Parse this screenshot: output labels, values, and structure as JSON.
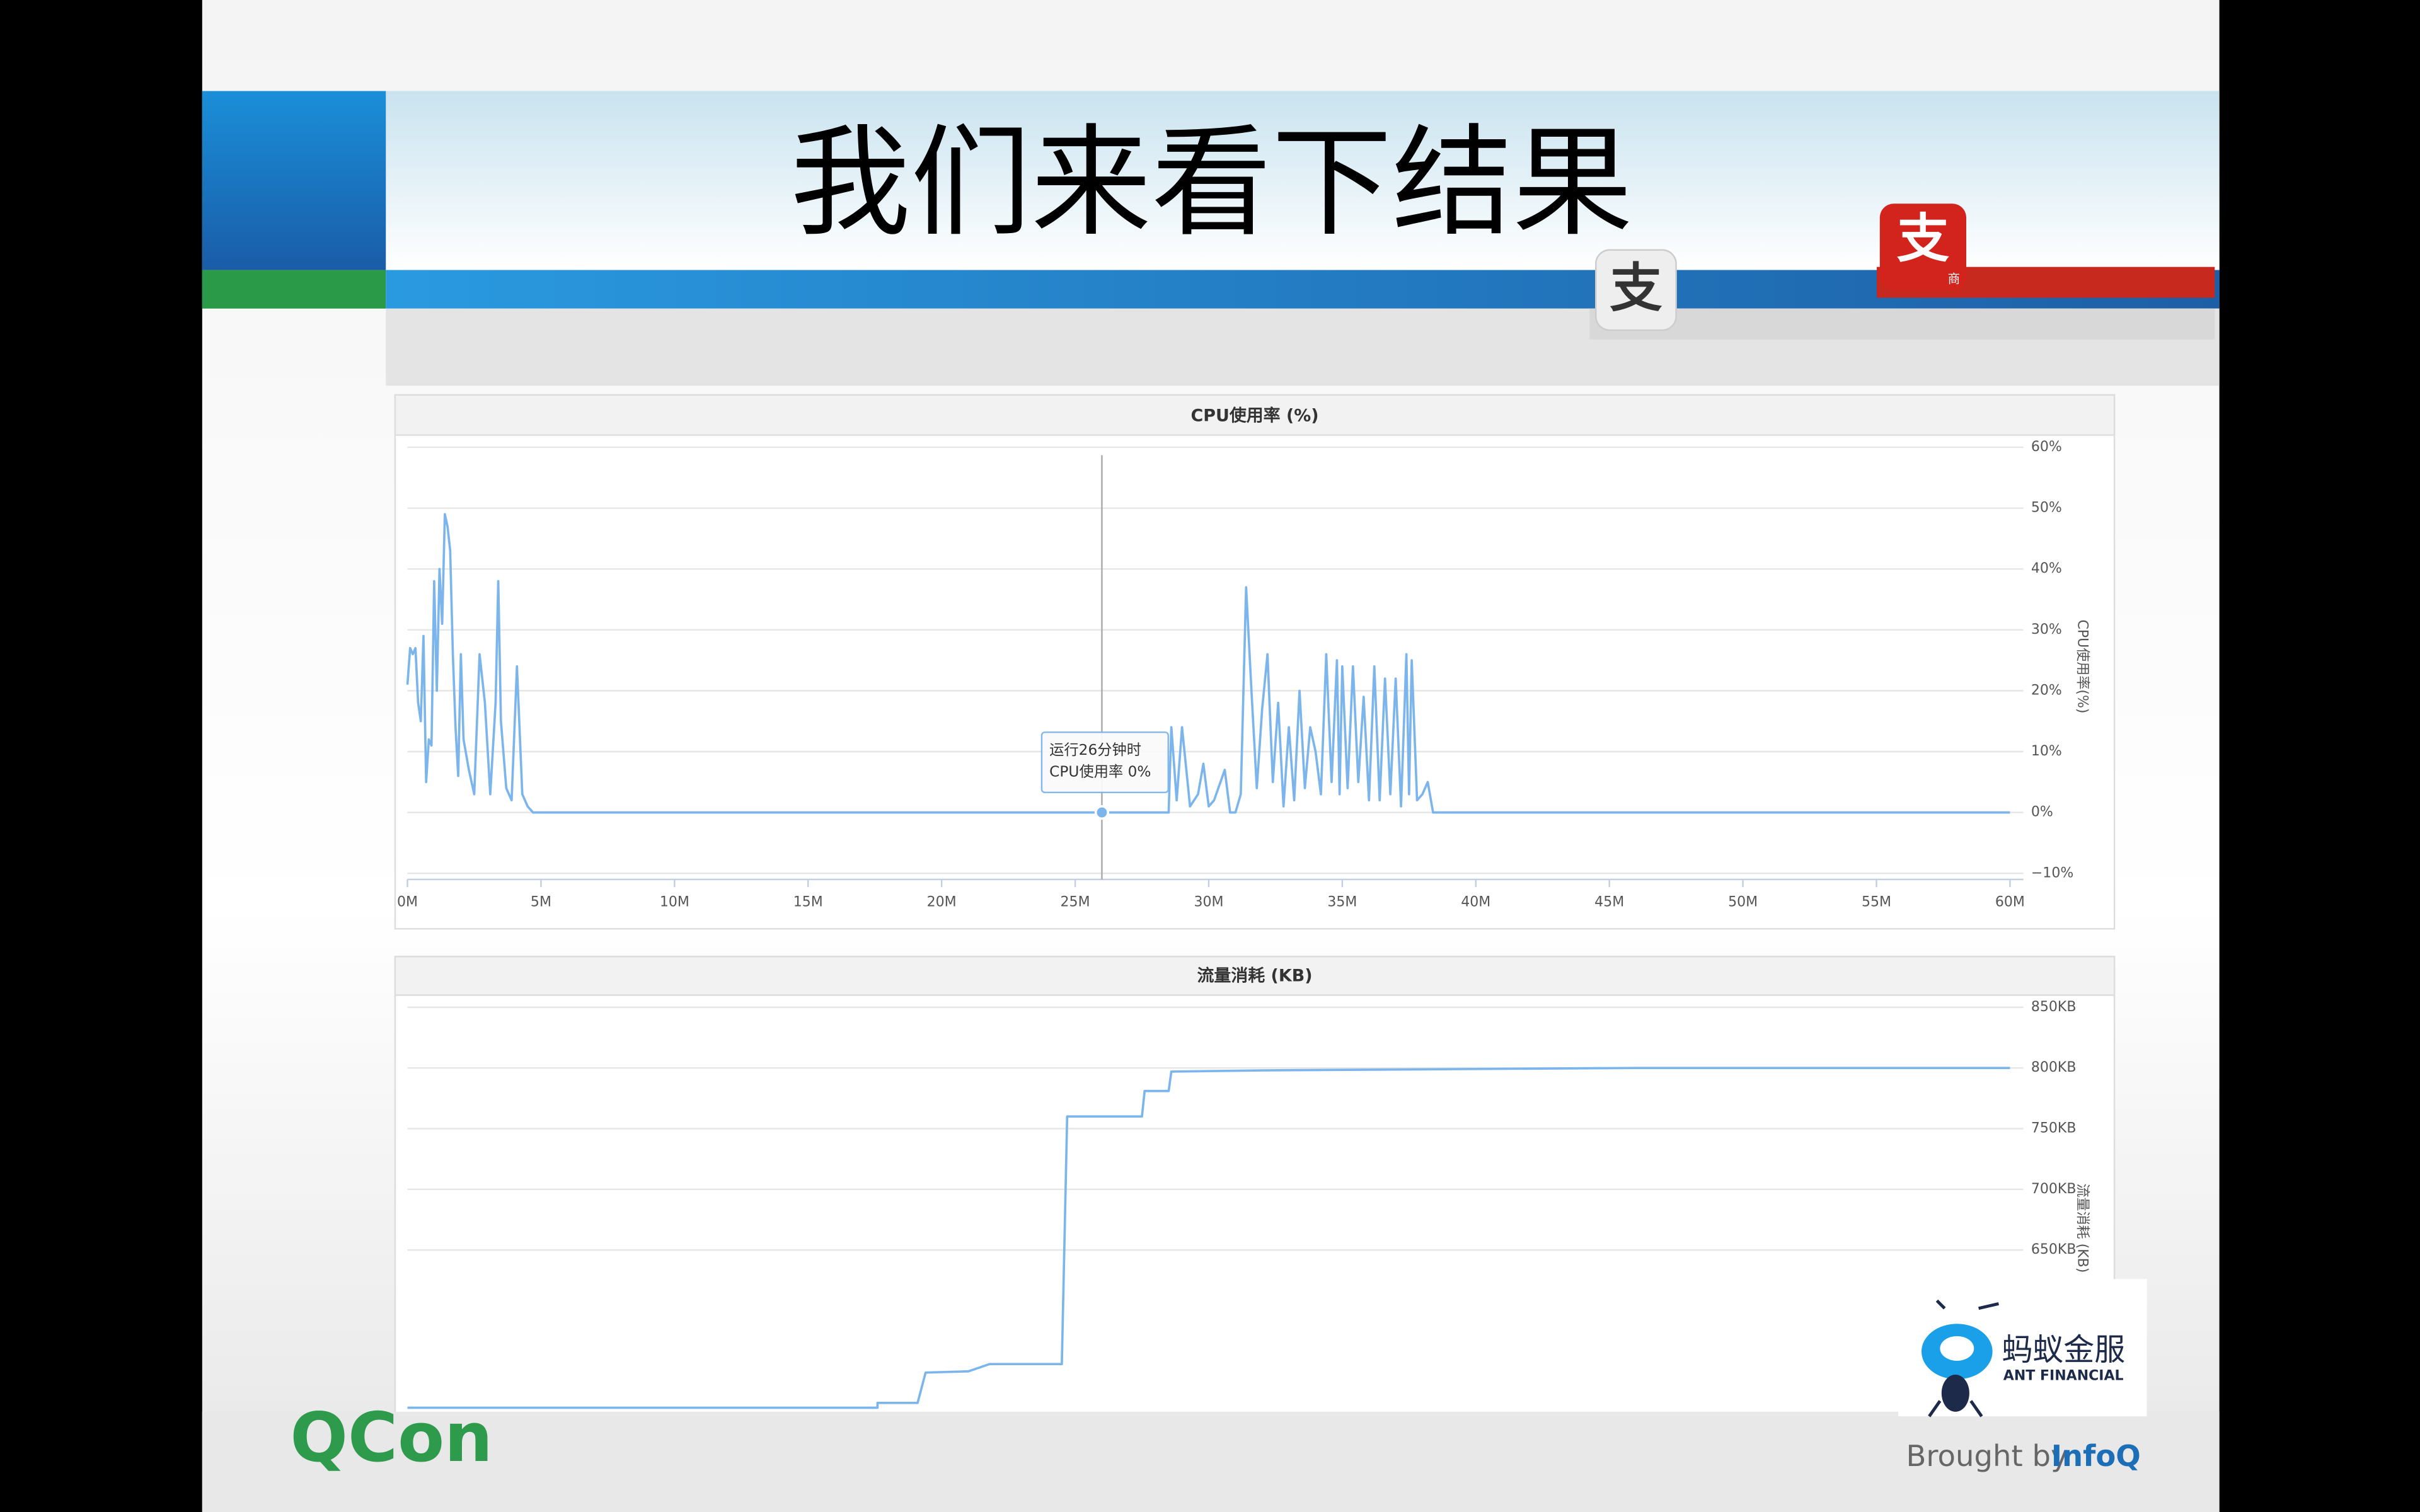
{
  "slide_title": "我们来看下结果",
  "logos": {
    "alipay": "支",
    "alipay_merchant": "支",
    "merchant_badge": "商",
    "ant_cn": "蚂蚁金服",
    "ant_en": "ANT FINANCIAL",
    "qcon": "QCon",
    "brought_by": "Brought by",
    "infoq": "InfoQ"
  },
  "chart_data": [
    {
      "type": "line",
      "title": "CPU使用率 (%)",
      "y_label": "CPU使用率(%)",
      "xlim": [
        0,
        60.5
      ],
      "xticks": [
        {
          "value": 0,
          "label": "0M"
        },
        {
          "value": 5,
          "label": "5M"
        },
        {
          "value": 10,
          "label": "10M"
        },
        {
          "value": 15,
          "label": "15M"
        },
        {
          "value": 20,
          "label": "20M"
        },
        {
          "value": 25,
          "label": "25M"
        },
        {
          "value": 30,
          "label": "30M"
        },
        {
          "value": 35,
          "label": "35M"
        },
        {
          "value": 40,
          "label": "40M"
        },
        {
          "value": 45,
          "label": "45M"
        },
        {
          "value": 50,
          "label": "50M"
        },
        {
          "value": 55,
          "label": "55M"
        },
        {
          "value": 60,
          "label": "60M"
        }
      ],
      "ylim": [
        -11,
        62
      ],
      "yticks": [
        {
          "value": -10,
          "label": "−10%"
        },
        {
          "value": 0,
          "label": "0%"
        },
        {
          "value": 10,
          "label": "10%"
        },
        {
          "value": 20,
          "label": "20%"
        },
        {
          "value": 30,
          "label": "30%"
        },
        {
          "value": 40,
          "label": "40%"
        },
        {
          "value": 50,
          "label": "50%"
        },
        {
          "value": 60,
          "label": "60%"
        }
      ],
      "grid": true,
      "x": [
        0,
        0.1,
        0.2,
        0.3,
        0.4,
        0.5,
        0.6,
        0.7,
        0.8,
        0.9,
        1.0,
        1.1,
        1.2,
        1.3,
        1.4,
        1.5,
        1.6,
        1.7,
        1.8,
        1.9,
        2.0,
        2.1,
        2.3,
        2.5,
        2.7,
        2.9,
        3.1,
        3.3,
        3.4,
        3.5,
        3.7,
        3.9,
        4.1,
        4.3,
        4.5,
        4.7,
        28.5,
        28.6,
        28.8,
        29.0,
        29.3,
        29.6,
        29.8,
        30.0,
        30.2,
        30.6,
        30.8,
        31.0,
        31.2,
        31.4,
        31.6,
        31.8,
        32.0,
        32.2,
        32.4,
        32.6,
        32.8,
        33.0,
        33.2,
        33.4,
        33.6,
        33.8,
        34.0,
        34.2,
        34.4,
        34.6,
        34.8,
        34.9,
        35.0,
        35.2,
        35.4,
        35.6,
        35.8,
        36.0,
        36.2,
        36.4,
        36.6,
        36.8,
        37.0,
        37.2,
        37.4,
        37.5,
        37.6,
        37.8,
        38.0,
        38.2,
        38.4,
        60
      ],
      "series": [
        {
          "color": "#7cb5ec",
          "values": [
            21,
            27,
            26,
            27,
            18,
            15,
            29,
            5,
            12,
            11,
            38,
            20,
            40,
            31,
            49,
            47,
            43,
            26,
            14,
            6,
            26,
            12,
            7,
            3,
            26,
            18,
            3,
            18,
            38,
            15,
            4,
            2,
            24,
            3,
            1,
            0,
            0,
            14,
            2,
            14,
            1,
            3,
            8,
            1,
            2,
            7,
            0,
            0,
            3,
            37,
            20,
            4,
            17,
            26,
            5,
            18,
            1,
            14,
            2,
            20,
            4,
            14,
            10,
            3,
            26,
            5,
            25,
            3,
            24,
            4,
            24,
            5,
            19,
            2,
            24,
            2,
            22,
            3,
            22,
            1,
            26,
            3,
            25,
            2,
            3,
            5,
            0,
            0
          ]
        }
      ],
      "tooltip": {
        "x": 26,
        "value": 0,
        "lines": [
          "运行26分钟时",
          "CPU使用率 0%"
        ]
      }
    },
    {
      "type": "line",
      "title": "流量消耗 (KB)",
      "y_label": "流量消耗 (KB)",
      "xlim": [
        0,
        60.5
      ],
      "ylim": [
        518,
        860
      ],
      "yticks": [
        {
          "value": 650,
          "label": "650KB"
        },
        {
          "value": 700,
          "label": "700KB"
        },
        {
          "value": 750,
          "label": "750KB"
        },
        {
          "value": 800,
          "label": "800KB"
        },
        {
          "value": 850,
          "label": "850KB"
        }
      ],
      "grid": true,
      "x": [
        0,
        17.6,
        17.6,
        19.1,
        19.4,
        21,
        21.8,
        24.5,
        24.7,
        27.5,
        27.6,
        28.5,
        28.6,
        32,
        46,
        60
      ],
      "series": [
        {
          "color": "#7cb5ec",
          "values": [
            520,
            520,
            524,
            524,
            549,
            550,
            556,
            556,
            760,
            760,
            781,
            781,
            797,
            798,
            800,
            800
          ]
        }
      ]
    }
  ]
}
